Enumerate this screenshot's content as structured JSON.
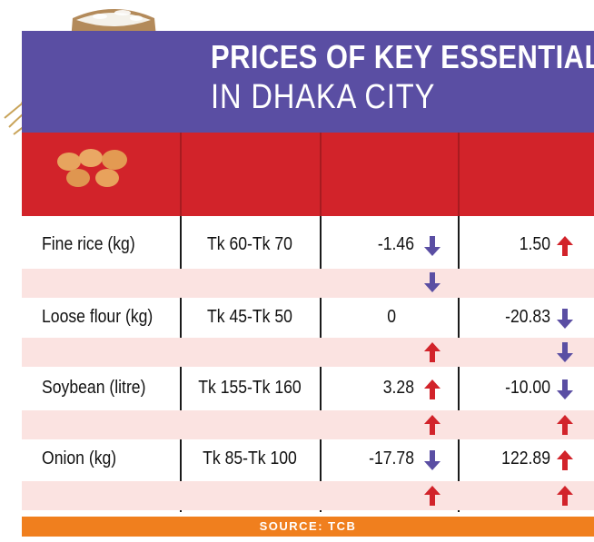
{
  "title": {
    "line1": "PRICES OF KEY ESSENTIALS",
    "line2": "IN DHAKA CITY"
  },
  "rows": [
    {
      "item": "Fine rice (kg)",
      "price": "Tk 60-Tk 70",
      "change1": "-1.46",
      "change2": "1.50"
    },
    {
      "item": "Loose flour (kg)",
      "price": "Tk 45-Tk 50",
      "change1": "0",
      "change2": "-20.83"
    },
    {
      "item": "Soybean (litre)",
      "price": "Tk 155-Tk 160",
      "change1": "3.28",
      "change2": "-10.00"
    },
    {
      "item": "Onion (kg)",
      "price": "Tk 85-Tk 100",
      "change1": "-17.78",
      "change2": "122.89"
    }
  ],
  "arrows": {
    "up_icon": "arrow-up-icon",
    "down_icon": "arrow-down-icon",
    "up_color": "#d2232a",
    "down_color": "#5a4ea3"
  },
  "source": "SOURCE: TCB",
  "colors": {
    "title_band": "#5a4ea3",
    "header_band": "#d2232a",
    "pink_band": "#fbe3e1",
    "source_band": "#f07f1e"
  }
}
